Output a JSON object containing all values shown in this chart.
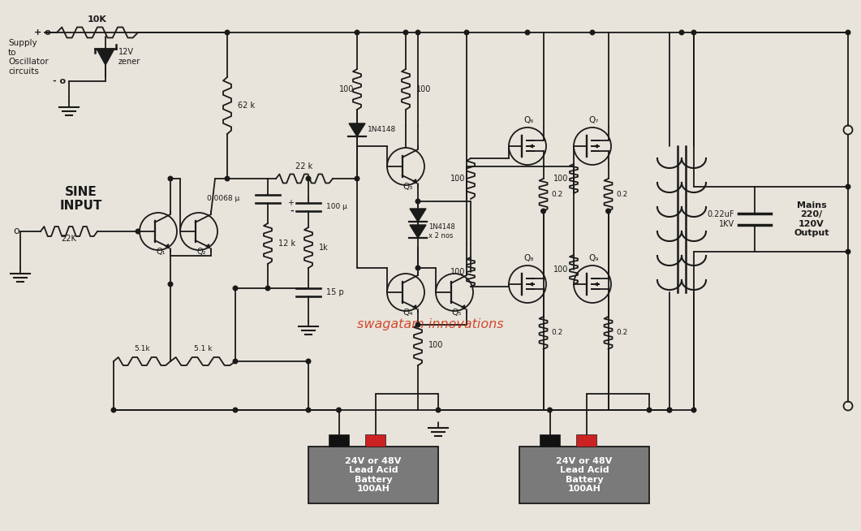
{
  "bg_color": "#e8e4db",
  "line_color": "#1a1a1a",
  "text_color": "#1a1a1a",
  "red_color": "#cc2200",
  "watermark": "swagatam innovations",
  "battery_color": "#7a7a7a",
  "supply_label": "Supply\nto\nOscillator\ncircuits",
  "sine_label": "SINE\nINPUT",
  "output_label": "Mains\n220/\n120V\nOutput",
  "cap_label": "0.22uF\n1KV",
  "zener_label": "12V\nzener",
  "r10k": "10K",
  "r62k": "62 k",
  "r22k": "22 k",
  "r22K_in": "22K",
  "c0068": "0.0068 μ",
  "r12k": "12 k",
  "c100u": "100 μ",
  "r1k": "1k",
  "c15p": "15 p",
  "d1n4148_1": "1N4148",
  "d1n4148_2": "1N4148\nx 2 nos",
  "r5k1_1": "5.1k",
  "r5k1_2": "5.1 k",
  "battery_text": "24V or 48V\nLead Acid\nBattery\n100AH"
}
